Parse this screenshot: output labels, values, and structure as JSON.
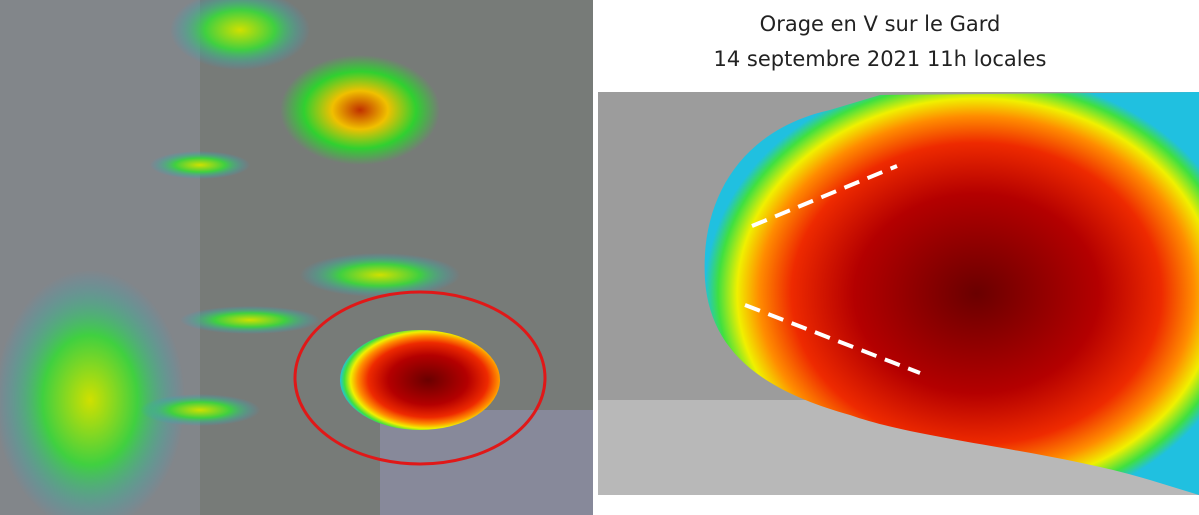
{
  "header": {
    "title": "Orage en V sur le Gard",
    "subtitle": "14 septembre 2021 11h locales"
  }
}
